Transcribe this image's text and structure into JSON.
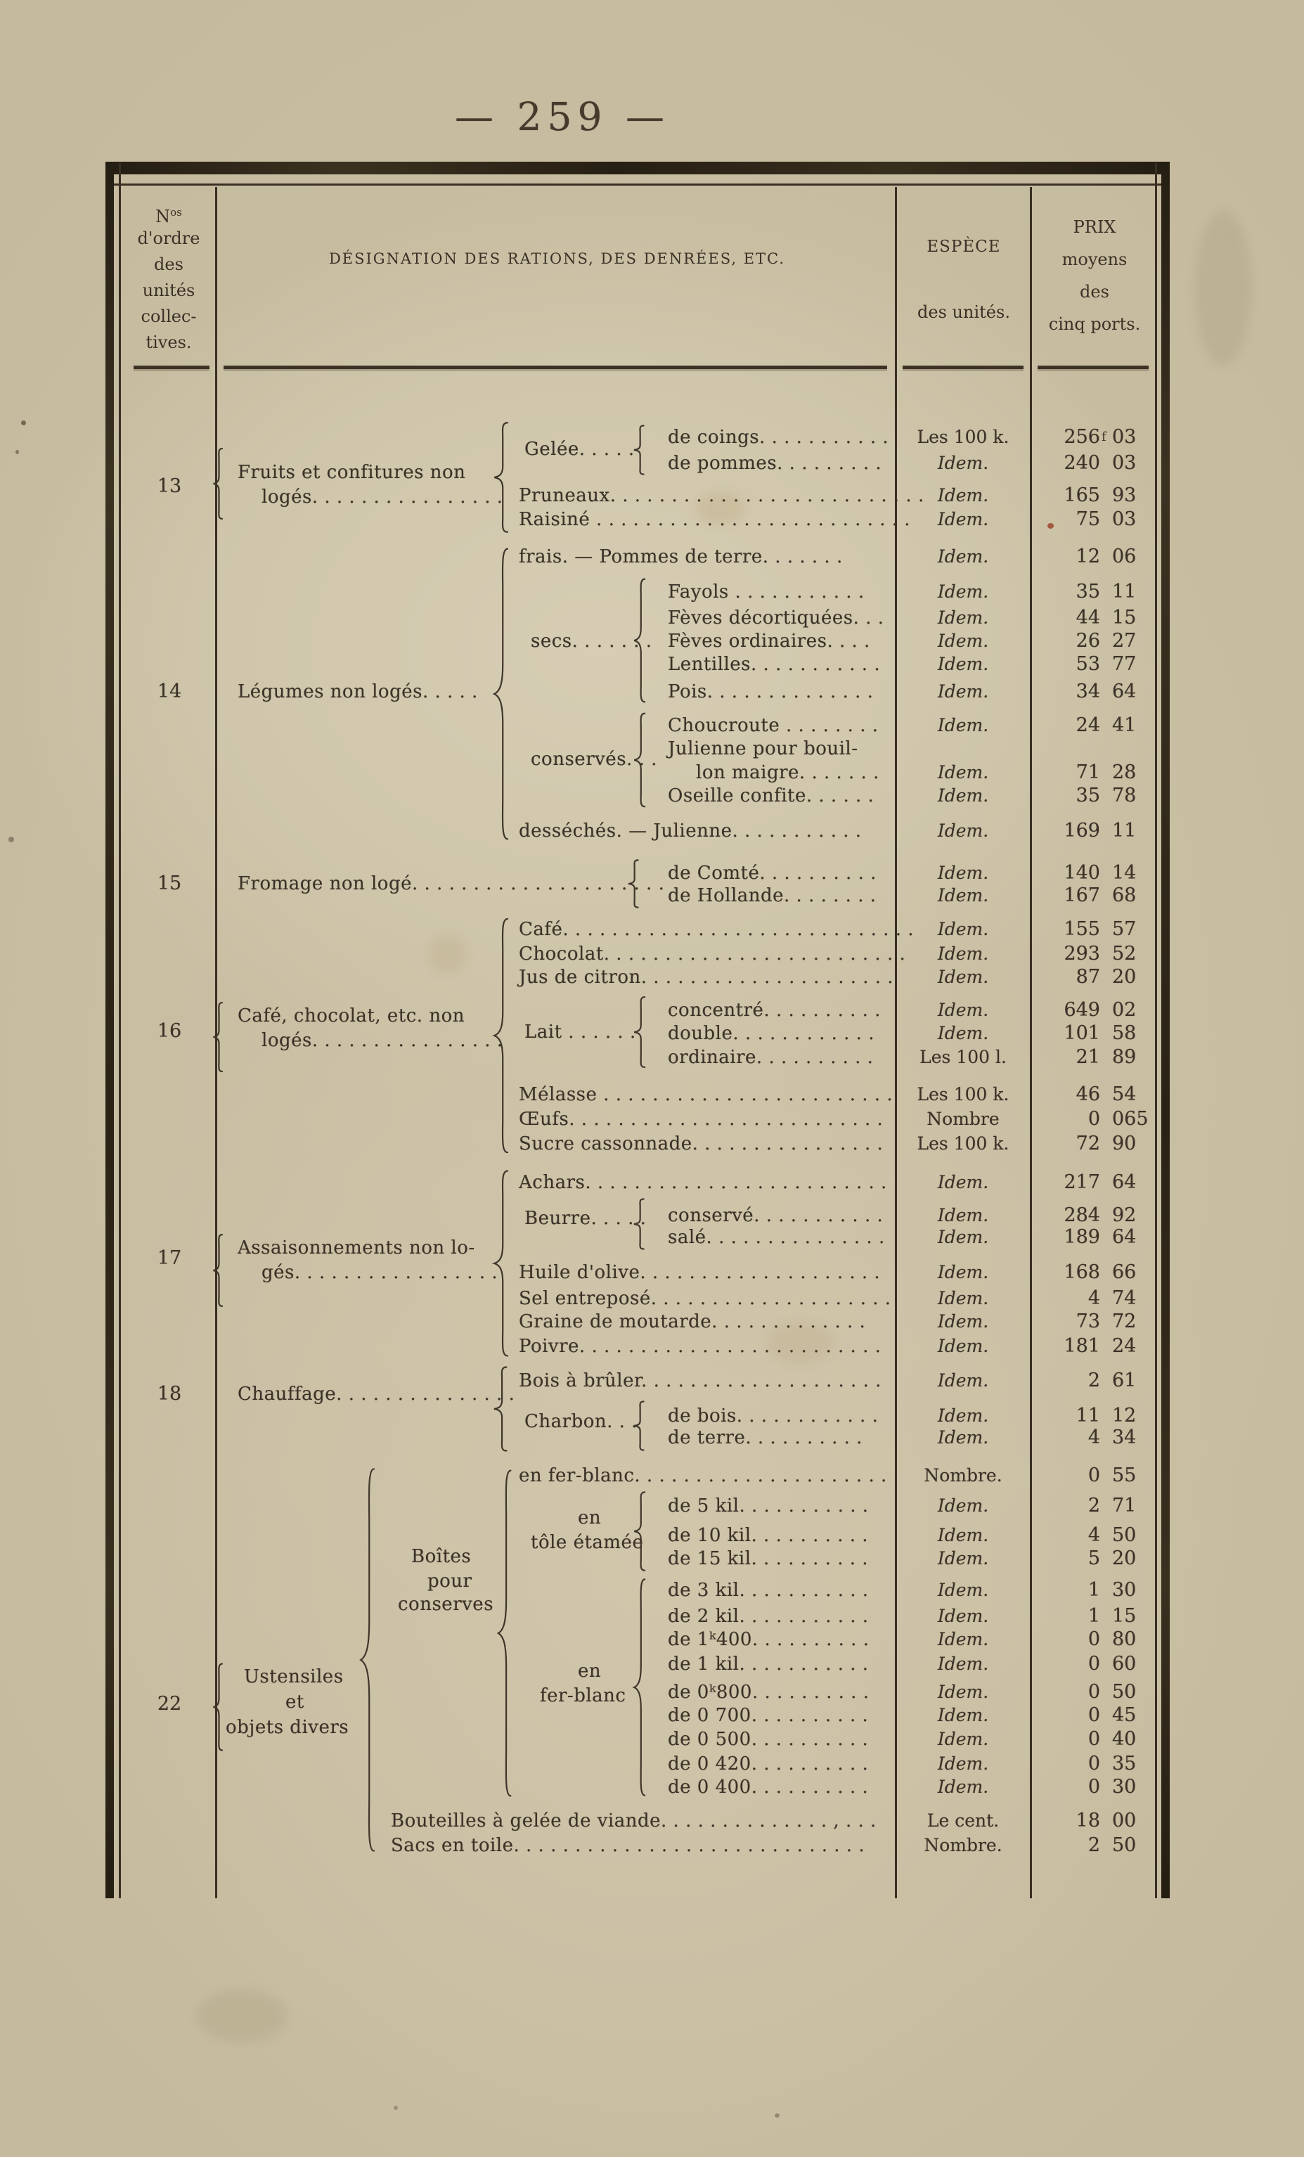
{
  "page": {
    "number": "— 259 —"
  },
  "header": {
    "col1": {
      "n": "N",
      "sup": "os",
      "l1": "d'ordre",
      "l2": "des",
      "l3": "unités",
      "l4": "collec-",
      "l5": "tives."
    },
    "col2": {
      "title": "DÉSIGNATION DES RATIONS, DES DENRÉES, ETC."
    },
    "col3": {
      "l1": "ESPÈCE",
      "l2": "des unités."
    },
    "col4": {
      "l1": "PRIX",
      "l2": "moyens",
      "l3": "des",
      "l4": "cinq ports."
    }
  },
  "groups": {
    "g13": {
      "num": "13",
      "l1": "Fruits et confitures non",
      "l2": "logés. . . . . . . . . . . . . . . ."
    },
    "gelee": "Gelée. . . . .",
    "g14": {
      "num": "14",
      "label": "Légumes non logés. . . . ."
    },
    "secs": "secs. . . . . . .",
    "conserves": "conservés. . .",
    "g15": {
      "num": "15",
      "label": "Fromage non logé. . . . . . . . . . . . . . . . . . . . ."
    },
    "g16": {
      "num": "16",
      "l1": "Café, chocolat, etc. non",
      "l2": "logés. . . . . . . . . . . . . . . ."
    },
    "lait": "Lait . . . . . .",
    "g17": {
      "num": "17",
      "l1": "Assaisonnements non lo-",
      "l2": "gés. . . . . . . . . . . . . . . . ."
    },
    "beurre": "Beurre. . . . .",
    "g18": {
      "num": "18",
      "label": "Chauffage. . . . . . . . . . . . . . ."
    },
    "charbon": "Charbon. . .",
    "g22": {
      "num": "22",
      "l1": "Ustensiles",
      "l2": "et",
      "l3": "objets divers"
    },
    "boites": {
      "l1": "Boîtes",
      "l2": "pour",
      "l3": "conserves"
    },
    "tole": {
      "l1": "en",
      "l2": "tôle étamée"
    },
    "fer": {
      "l1": "en",
      "l2": "fer-blanc"
    }
  },
  "rows": [
    {
      "label": "de coings. . . . . . . . . . .",
      "unit": "Les 100 k.",
      "fr": "256",
      "sup": "f",
      "c": "03"
    },
    {
      "label": "de pommes. . . . . . . . .",
      "unit": "Idem.",
      "fr": "240",
      "c": "03"
    },
    {
      "label": "Pruneaux. . . . . . . . . . . . . . . . . . . . . . . . . .",
      "unit": "Idem.",
      "fr": "165",
      "c": "93"
    },
    {
      "label": "Raisiné . . . . . . . . . . . . . . . . . . . . . . . . . .",
      "unit": "Idem.",
      "fr": "75",
      "c": "03"
    },
    {
      "label": "frais. — Pommes de terre. . . . . . .",
      "unit": "Idem.",
      "fr": "12",
      "c": "06"
    },
    {
      "label": "Fayols . . . . . .  . . . . .",
      "unit": "Idem.",
      "fr": "35",
      "c": "11"
    },
    {
      "label": "Fèves décortiquées. . .",
      "unit": "Idem.",
      "fr": "44",
      "c": "15"
    },
    {
      "label": "Fèves ordinaires. . . .",
      "unit": "Idem.",
      "fr": "26",
      "c": "27"
    },
    {
      "label": "Lentilles. . . . . . . . . . .",
      "unit": "Idem.",
      "fr": "53",
      "c": "77"
    },
    {
      "label": "Pois. . . . . . . . . . . . . .",
      "unit": "Idem.",
      "fr": "34",
      "c": "64"
    },
    {
      "label": "Choucroute . . . . . . . .",
      "unit": "Idem.",
      "fr": "24",
      "c": "41"
    },
    {
      "label": "Julienne pour bouil-"
    },
    {
      "label": "lon maigre. . . . . . .",
      "unit": "Idem.",
      "fr": "71",
      "c": "28"
    },
    {
      "label": "Oseille confite. . . . . .",
      "unit": "Idem.",
      "fr": "35",
      "c": "78"
    },
    {
      "label": "desséchés. — Julienne. . . . . . . . . . .",
      "unit": "Idem.",
      "fr": "169",
      "c": "11"
    },
    {
      "label": "de Comté. . . . . . . . . .",
      "unit": "Idem.",
      "fr": "140",
      "c": "14"
    },
    {
      "label": "de Hollande. . . . . . . .",
      "unit": "Idem.",
      "fr": "167",
      "c": "68"
    },
    {
      "label": "Café. . . . . . . . . . . . . . . . . . . . . . . . . . . . .",
      "unit": "Idem.",
      "fr": "155",
      "c": "57"
    },
    {
      "label": "Chocolat. . . . . . . . . . . . . . . . . . . . . . . . .",
      "unit": "Idem.",
      "fr": "293",
      "c": "52"
    },
    {
      "label": "Jus de citron. . . . . . . . . . . . . . . . . . . . .",
      "unit": "Idem.",
      "fr": "87",
      "c": "20"
    },
    {
      "label": "concentré. . . . . . . . . .",
      "unit": "Idem.",
      "fr": "649",
      "c": "02"
    },
    {
      "label": "double. . . . . . . . . . . .",
      "unit": "Idem.",
      "fr": "101",
      "c": "58"
    },
    {
      "label": "ordinaire. . . . . . . . . .",
      "unit": "Les 100 l.",
      "fr": "21",
      "c": "89"
    },
    {
      "label": "Mélasse . . . . . . . . . . . . . . . . . . . . . . . .",
      "unit": "Les 100 k.",
      "fr": "46",
      "c": "54"
    },
    {
      "label": "Œufs. . . . . . . . . . . . . . . . . . . . . . . . . .",
      "unit": "Nombre",
      "fr": "0",
      "c": "065"
    },
    {
      "label": "Sucre cassonnade. . . . . . . . . . . . . . . .",
      "unit": "Les 100 k.",
      "fr": "72",
      "c": "90"
    },
    {
      "label": "Achars. . . . . . . . . . . . . . . . . . . . . . . . .",
      "unit": "Idem.",
      "fr": "217",
      "c": "64"
    },
    {
      "label": "conservé. . . . . . . . . . .",
      "unit": "Idem.",
      "fr": "284",
      "c": "92"
    },
    {
      "label": "salé. . . . . . . . . . . . . . .",
      "unit": "Idem.",
      "fr": "189",
      "c": "64"
    },
    {
      "label": "Huile d'olive. . . . . . . . . . . . . . . . . . . .",
      "unit": "Idem.",
      "fr": "168",
      "c": "66"
    },
    {
      "label": "Sel entreposé. . . . . . . . . . . . . . . . . . . .",
      "unit": "Idem.",
      "fr": "4",
      "c": "74"
    },
    {
      "label": "Graine de moutarde. . . . . . . . . . . . .",
      "unit": "Idem.",
      "fr": "73",
      "c": "72"
    },
    {
      "label": "Poivre. . . . . . . . . . . . . . . . . . . . . . . . .",
      "unit": "Idem.",
      "fr": "181",
      "c": "24"
    },
    {
      "label": "Bois à brûler. . . . . . . . . . . . . . . . . . . .",
      "unit": "Idem.",
      "fr": "2",
      "c": "61"
    },
    {
      "label": "de bois. . . . . . . . . . . .",
      "unit": "Idem.",
      "fr": "11",
      "c": "12"
    },
    {
      "label": "de terre. . . .  . . . . . .",
      "unit": "Idem.",
      "fr": "4",
      "c": "34"
    },
    {
      "label": "en fer-blanc. . . . . . . . . . . . . . . . . . . . .",
      "unit": "Nombre.",
      "fr": "0",
      "c": "55"
    },
    {
      "label": "de 5 kil. . . . . . . . . . .",
      "unit": "Idem.",
      "fr": "2",
      "c": "71"
    },
    {
      "label": "de 10 kil. . . . . . . . . .",
      "unit": "Idem.",
      "fr": "4",
      "c": "50"
    },
    {
      "label": "de 15 kil. . . . . . . . . .",
      "unit": "Idem.",
      "fr": "5",
      "c": "20"
    },
    {
      "label": "de 3 kil. . . . . . . . . . .",
      "unit": "Idem.",
      "fr": "1",
      "c": "30"
    },
    {
      "label": "de 2 kil. . . . . . . . . . .",
      "unit": "Idem.",
      "fr": "1",
      "c": "15"
    },
    {
      "label": "de 1ᵏ400. . . . . . . . . .",
      "unit": "Idem.",
      "fr": "0",
      "c": "80"
    },
    {
      "label": "de 1 kil. . . . . . . . . . .",
      "unit": "Idem.",
      "fr": "0",
      "c": "60"
    },
    {
      "label": "de 0ᵏ800. . . . . . . . . .",
      "unit": "Idem.",
      "fr": "0",
      "c": "50"
    },
    {
      "label": "de 0 700. . . . . . . . . .",
      "unit": "Idem.",
      "fr": "0",
      "c": "45"
    },
    {
      "label": "de 0 500. . . . . . . . . .",
      "unit": "Idem.",
      "fr": "0",
      "c": "40"
    },
    {
      "label": "de 0 420. . . . . . . . . .",
      "unit": "Idem.",
      "fr": "0",
      "c": "35"
    },
    {
      "label": "de 0 400. . . . . . . . . .",
      "unit": "Idem.",
      "fr": "0",
      "c": "30"
    },
    {
      "label": "Bouteilles à gelée de viande. . . . . . . . . . . . . . , . . .",
      "unit": "Le cent.",
      "fr": "18",
      "c": "00"
    },
    {
      "label": "Sacs en toile. . . . . . . . . . . . . . . . . . . . .  . . . . . . . .",
      "unit": "Nombre.",
      "fr": "2",
      "c": "50"
    }
  ]
}
